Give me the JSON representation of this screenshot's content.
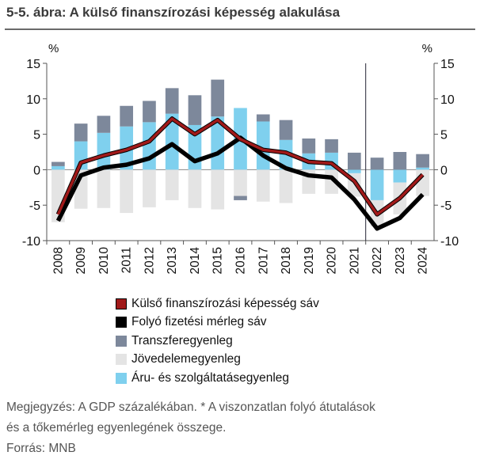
{
  "title": "5-5. ábra: A külső finanszírozási képesség alakulása",
  "colors": {
    "kulso": "#a11a1a",
    "folyo": "#000000",
    "transzfer": "#7d889b",
    "jovedelem": "#e4e4e4",
    "aru": "#7fd0ee"
  },
  "chart_data": {
    "type": "bar",
    "stacked": true,
    "title": "5-5. ábra: A külső finanszírozási képesség alakulása",
    "y_left_label": "%",
    "y_right_label": "%",
    "ylim": [
      -10,
      15
    ],
    "yticks": [
      -10,
      -5,
      0,
      5,
      10,
      15
    ],
    "categories": [
      "2008",
      "2009",
      "2010",
      "2011",
      "2012",
      "2013",
      "2014",
      "2015",
      "2016",
      "2017",
      "2018",
      "2019",
      "2020",
      "2021",
      "2022",
      "2023",
      "2024"
    ],
    "series": [
      {
        "name": "Áru- és szolgáltatásegyenleg",
        "key": "aru",
        "values": [
          0.5,
          4.0,
          5.2,
          6.1,
          6.7,
          7.9,
          6.3,
          7.5,
          8.7,
          6.8,
          4.2,
          2.3,
          2.4,
          -0.5,
          -4.3,
          -1.8,
          0.3
        ]
      },
      {
        "name": "Jövedelemegyenleg",
        "key": "jovedelem",
        "values": [
          -7.4,
          -5.5,
          -5.4,
          -6.1,
          -5.3,
          -4.3,
          -5.4,
          -5.6,
          -3.7,
          -4.5,
          -4.7,
          -3.4,
          -3.4,
          -3.3,
          -3.7,
          -4.5,
          -3.7
        ]
      },
      {
        "name": "Transzferegyenleg",
        "key": "transzfer",
        "values": [
          0.6,
          2.5,
          2.4,
          2.9,
          3.0,
          3.6,
          4.2,
          5.2,
          -0.6,
          1.0,
          2.8,
          2.1,
          1.9,
          2.4,
          1.7,
          2.5,
          1.9
        ]
      },
      {
        "name": "Folyó fizetési mérleg sáv",
        "key": "folyo",
        "type": "line",
        "values": [
          -7.2,
          -0.8,
          0.3,
          0.7,
          1.6,
          3.6,
          1.2,
          2.3,
          4.5,
          2.0,
          0.2,
          -0.8,
          -1.1,
          -4.2,
          -8.3,
          -6.8,
          -3.5
        ]
      },
      {
        "name": "Külső finanszírozási képesség sáv",
        "key": "kulso",
        "type": "line",
        "values": [
          -6.3,
          1.0,
          2.0,
          2.8,
          4.0,
          7.2,
          5.0,
          7.0,
          4.3,
          2.8,
          2.4,
          1.1,
          0.9,
          -1.6,
          -6.3,
          -4.0,
          -0.7
        ]
      }
    ],
    "legend_order": [
      "kulso",
      "folyo",
      "transzfer",
      "jovedelem",
      "aru"
    ],
    "vertical_marker_after": "2021",
    "grid": false
  },
  "note_line1": "Megjegyzés: A GDP százalékában. * A viszonzatlan folyó átutalások",
  "note_line2": "és a tőkemérleg egyenlegének összege.",
  "source": "Forrás: MNB"
}
